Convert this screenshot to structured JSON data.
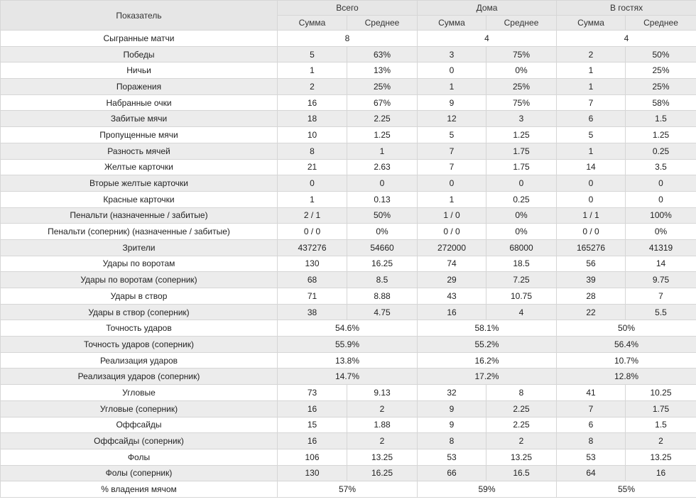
{
  "header": {
    "indicator": "Показатель",
    "groups": [
      "Всего",
      "Дома",
      "В гостях"
    ],
    "sum": "Сумма",
    "avg": "Среднее"
  },
  "rows": [
    {
      "label": "Сыгранные матчи",
      "merged": true,
      "values": [
        "8",
        "4",
        "4"
      ]
    },
    {
      "label": "Победы",
      "values": [
        "5",
        "63%",
        "3",
        "75%",
        "2",
        "50%"
      ]
    },
    {
      "label": "Ничьи",
      "values": [
        "1",
        "13%",
        "0",
        "0%",
        "1",
        "25%"
      ]
    },
    {
      "label": "Поражения",
      "values": [
        "2",
        "25%",
        "1",
        "25%",
        "1",
        "25%"
      ]
    },
    {
      "label": "Набранные очки",
      "values": [
        "16",
        "67%",
        "9",
        "75%",
        "7",
        "58%"
      ]
    },
    {
      "label": "Забитые мячи",
      "values": [
        "18",
        "2.25",
        "12",
        "3",
        "6",
        "1.5"
      ]
    },
    {
      "label": "Пропущенные мячи",
      "values": [
        "10",
        "1.25",
        "5",
        "1.25",
        "5",
        "1.25"
      ]
    },
    {
      "label": "Разность мячей",
      "values": [
        "8",
        "1",
        "7",
        "1.75",
        "1",
        "0.25"
      ]
    },
    {
      "label": "Желтые карточки",
      "values": [
        "21",
        "2.63",
        "7",
        "1.75",
        "14",
        "3.5"
      ]
    },
    {
      "label": "Вторые желтые карточки",
      "values": [
        "0",
        "0",
        "0",
        "0",
        "0",
        "0"
      ]
    },
    {
      "label": "Красные карточки",
      "values": [
        "1",
        "0.13",
        "1",
        "0.25",
        "0",
        "0"
      ]
    },
    {
      "label": "Пенальти (назначенные / забитые)",
      "values": [
        "2 / 1",
        "50%",
        "1 / 0",
        "0%",
        "1 / 1",
        "100%"
      ]
    },
    {
      "label": "Пенальти (соперник) (назначенные / забитые)",
      "values": [
        "0 / 0",
        "0%",
        "0 / 0",
        "0%",
        "0 / 0",
        "0%"
      ]
    },
    {
      "label": "Зрители",
      "values": [
        "437276",
        "54660",
        "272000",
        "68000",
        "165276",
        "41319"
      ]
    },
    {
      "label": "Удары по воротам",
      "values": [
        "130",
        "16.25",
        "74",
        "18.5",
        "56",
        "14"
      ]
    },
    {
      "label": "Удары по воротам (соперник)",
      "values": [
        "68",
        "8.5",
        "29",
        "7.25",
        "39",
        "9.75"
      ]
    },
    {
      "label": "Удары в створ",
      "values": [
        "71",
        "8.88",
        "43",
        "10.75",
        "28",
        "7"
      ]
    },
    {
      "label": "Удары в створ (соперник)",
      "values": [
        "38",
        "4.75",
        "16",
        "4",
        "22",
        "5.5"
      ]
    },
    {
      "label": "Точность ударов",
      "merged": true,
      "values": [
        "54.6%",
        "58.1%",
        "50%"
      ]
    },
    {
      "label": "Точность ударов (соперник)",
      "merged": true,
      "values": [
        "55.9%",
        "55.2%",
        "56.4%"
      ]
    },
    {
      "label": "Реализация ударов",
      "merged": true,
      "values": [
        "13.8%",
        "16.2%",
        "10.7%"
      ]
    },
    {
      "label": "Реализация ударов (соперник)",
      "merged": true,
      "values": [
        "14.7%",
        "17.2%",
        "12.8%"
      ]
    },
    {
      "label": "Угловые",
      "values": [
        "73",
        "9.13",
        "32",
        "8",
        "41",
        "10.25"
      ]
    },
    {
      "label": "Угловые (соперник)",
      "values": [
        "16",
        "2",
        "9",
        "2.25",
        "7",
        "1.75"
      ]
    },
    {
      "label": "Оффсайды",
      "values": [
        "15",
        "1.88",
        "9",
        "2.25",
        "6",
        "1.5"
      ]
    },
    {
      "label": "Оффсайды (соперник)",
      "values": [
        "16",
        "2",
        "8",
        "2",
        "8",
        "2"
      ]
    },
    {
      "label": "Фолы",
      "values": [
        "106",
        "13.25",
        "53",
        "13.25",
        "53",
        "13.25"
      ]
    },
    {
      "label": "Фолы (соперник)",
      "values": [
        "130",
        "16.25",
        "66",
        "16.5",
        "64",
        "16"
      ]
    },
    {
      "label": "% владения мячом",
      "merged": true,
      "values": [
        "57%",
        "59%",
        "55%"
      ]
    }
  ]
}
